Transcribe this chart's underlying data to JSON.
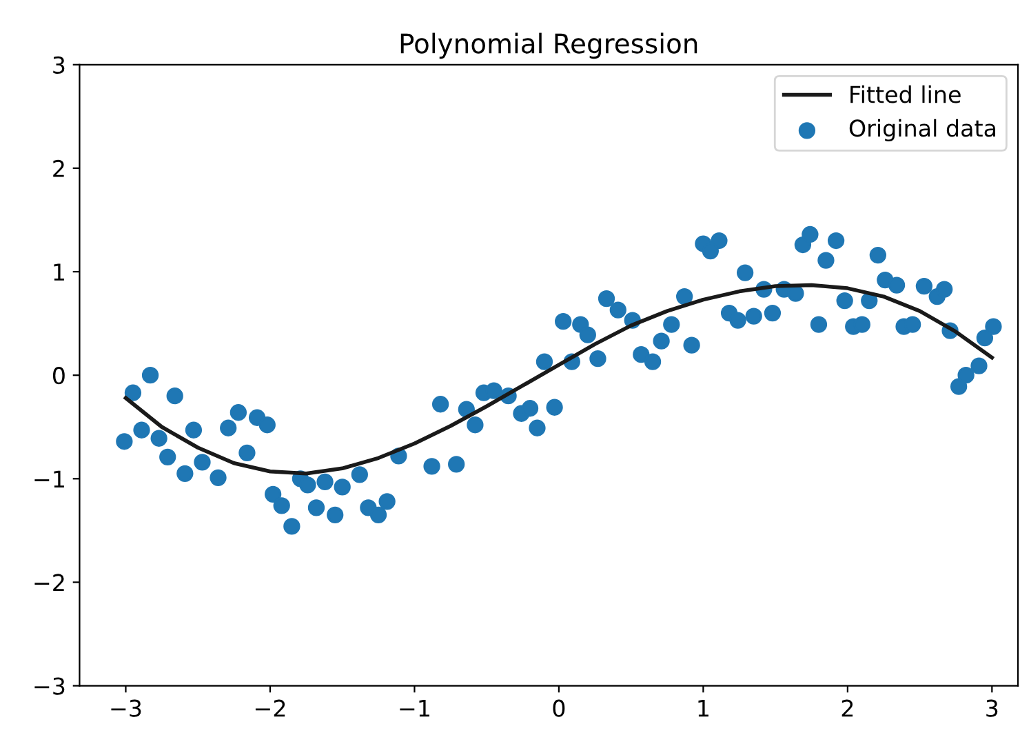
{
  "chart_data": {
    "type": "scatter",
    "title": "Polynomial Regression",
    "xlim": [
      -3.32,
      3.18
    ],
    "ylim": [
      -3,
      3
    ],
    "xticks": [
      -3,
      -2,
      -1,
      0,
      1,
      2,
      3
    ],
    "yticks": [
      -3,
      -2,
      -1,
      0,
      1,
      2,
      3
    ],
    "grid": false,
    "legend": "top right",
    "series": [
      {
        "name": "Fitted line",
        "type": "line",
        "color": "#1a1a1a",
        "marker": "none",
        "line_style": "solid",
        "x": [
          -3.0,
          -2.75,
          -2.5,
          -2.25,
          -2.0,
          -1.75,
          -1.5,
          -1.25,
          -1.0,
          -0.75,
          -0.5,
          -0.25,
          0.0,
          0.25,
          0.5,
          0.75,
          1.0,
          1.25,
          1.5,
          1.75,
          2.0,
          2.25,
          2.5,
          2.75,
          3.0
        ],
        "values": [
          -0.22,
          -0.5,
          -0.7,
          -0.85,
          -0.93,
          -0.95,
          -0.9,
          -0.8,
          -0.66,
          -0.49,
          -0.3,
          -0.1,
          0.1,
          0.3,
          0.48,
          0.62,
          0.73,
          0.81,
          0.86,
          0.87,
          0.84,
          0.76,
          0.62,
          0.42,
          0.17
        ]
      },
      {
        "name": "Original data",
        "color": "#1f77b4",
        "marker": "circle",
        "x": [
          -3.01,
          -2.95,
          -2.83,
          -2.66,
          -2.89,
          -2.77,
          -2.71,
          -2.59,
          -2.53,
          -2.47,
          -2.36,
          -2.29,
          -2.22,
          -2.09,
          -2.02,
          -2.16,
          -1.98,
          -1.92,
          -1.85,
          -1.79,
          -1.74,
          -1.68,
          -1.62,
          -1.55,
          -1.5,
          -1.38,
          -1.32,
          -1.25,
          -1.19,
          -1.11,
          -0.88,
          -0.71,
          -0.82,
          -0.64,
          -0.58,
          -0.52,
          -0.45,
          -0.35,
          -0.26,
          -0.2,
          -0.15,
          -0.03,
          -0.1,
          0.03,
          0.09,
          0.15,
          0.2,
          0.27,
          0.33,
          0.41,
          0.51,
          0.57,
          0.65,
          0.71,
          0.78,
          0.87,
          0.92,
          1.0,
          1.11,
          1.05,
          1.29,
          1.18,
          1.24,
          1.35,
          1.48,
          1.42,
          1.56,
          1.64,
          1.69,
          1.74,
          1.8,
          1.85,
          1.92,
          1.98,
          2.04,
          2.1,
          2.15,
          2.21,
          2.26,
          2.34,
          2.39,
          2.45,
          2.53,
          2.62,
          2.67,
          2.71,
          2.77,
          2.82,
          2.91,
          2.95,
          3.01
        ],
        "values": [
          -0.64,
          -0.17,
          0.0,
          -0.2,
          -0.53,
          -0.61,
          -0.79,
          -0.95,
          -0.53,
          -0.84,
          -0.99,
          -0.51,
          -0.36,
          -0.41,
          -0.48,
          -0.75,
          -1.15,
          -1.26,
          -1.46,
          -1.0,
          -1.06,
          -1.28,
          -1.03,
          -1.35,
          -1.08,
          -0.96,
          -1.28,
          -1.35,
          -1.22,
          -0.78,
          -0.88,
          -0.86,
          -0.28,
          -0.33,
          -0.48,
          -0.17,
          -0.15,
          -0.2,
          -0.37,
          -0.32,
          -0.51,
          -0.31,
          0.13,
          0.52,
          0.13,
          0.49,
          0.39,
          0.16,
          0.74,
          0.63,
          0.53,
          0.2,
          0.13,
          0.33,
          0.49,
          0.76,
          0.29,
          1.27,
          1.3,
          1.2,
          0.99,
          0.6,
          0.53,
          0.57,
          0.6,
          0.83,
          0.83,
          0.79,
          1.26,
          1.36,
          0.49,
          1.11,
          1.3,
          0.72,
          0.47,
          0.49,
          0.72,
          1.16,
          0.92,
          0.87,
          0.47,
          0.49,
          0.86,
          0.76,
          0.83,
          0.43,
          -0.11,
          0.0,
          0.09,
          0.36,
          0.47
        ]
      }
    ]
  }
}
